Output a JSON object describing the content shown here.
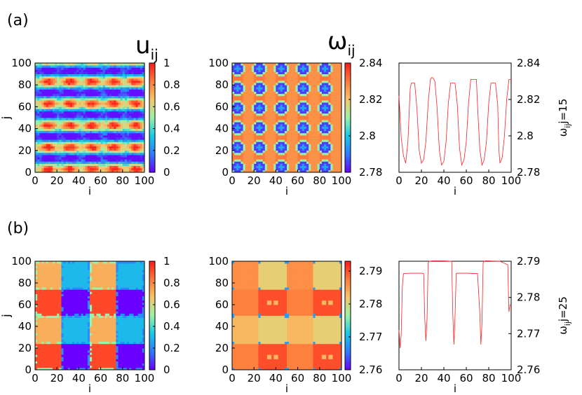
{
  "figure": {
    "panel_labels": [
      "(a)",
      "(b)"
    ],
    "headers": [
      {
        "main": "u",
        "sub": "ij"
      },
      {
        "main": "ω",
        "sub": "ij"
      }
    ],
    "colormap": [
      "#6a00ff",
      "#2f7bff",
      "#18c9e6",
      "#9cf2a8",
      "#f6c66a",
      "#ff7a3a",
      "#ff1a1a"
    ]
  },
  "chart_data": [
    {
      "type": "heatmap",
      "row": "a",
      "quantity": "u_ij",
      "xlabel": "i",
      "ylabel": "j",
      "xlim": [
        0,
        100
      ],
      "ylim": [
        0,
        100
      ],
      "x_ticks": [
        "0",
        "20",
        "40",
        "60",
        "80",
        "100"
      ],
      "y_ticks": [
        "0",
        "20",
        "40",
        "60",
        "80",
        "100"
      ],
      "colorbar": {
        "range": [
          0,
          1
        ],
        "ticks": [
          "0",
          "0.2",
          "0.4",
          "0.6",
          "0.8",
          "1"
        ]
      },
      "pattern": {
        "stripe_period_x": 20,
        "stripe_period_y": 20,
        "description_values": "alternating high/low bands"
      }
    },
    {
      "type": "heatmap",
      "row": "a",
      "quantity": "omega_ij",
      "xlabel": "i",
      "ylabel": "j",
      "xlim": [
        0,
        100
      ],
      "ylim": [
        0,
        100
      ],
      "x_ticks": [
        "0",
        "20",
        "40",
        "60",
        "80",
        "100"
      ],
      "y_ticks": [
        "0",
        "20",
        "40",
        "60",
        "80",
        "100"
      ],
      "colorbar": {
        "range": [
          2.78,
          2.84
        ],
        "ticks": [
          "2.78",
          "2.8",
          "2.82",
          "2.84"
        ]
      },
      "spot_centers_x": [
        5,
        25,
        45,
        65,
        85
      ],
      "spot_centers_y": [
        5,
        23,
        41,
        59,
        77,
        95
      ],
      "spot_value": 2.785,
      "background_value": 2.83
    },
    {
      "type": "line",
      "row": "a",
      "xlabel": "i",
      "ylabel": "ω",
      "ylabel_sub": "ij",
      "ylabel_suffix": "j=15",
      "xlim": [
        0,
        100
      ],
      "ylim": [
        2.78,
        2.84
      ],
      "x_ticks": [
        "0",
        "20",
        "40",
        "60",
        "80",
        "100"
      ],
      "y_ticks": [
        "2.78",
        "2.8",
        "2.82",
        "2.84"
      ],
      "series": [
        {
          "color": "#ff2020",
          "x": [
            0,
            2,
            4,
            6,
            8,
            10,
            11,
            12,
            14,
            16,
            18,
            20,
            22,
            24,
            26,
            28,
            29,
            30,
            32,
            34,
            36,
            38,
            40,
            42,
            44,
            46,
            48,
            49,
            50,
            52,
            54,
            56,
            58,
            60,
            62,
            64,
            66,
            68,
            69,
            70,
            72,
            74,
            76,
            78,
            80,
            82,
            84,
            86,
            88,
            89,
            90,
            92,
            94,
            96,
            98,
            100
          ],
          "y": [
            2.822,
            2.799,
            2.789,
            2.785,
            2.797,
            2.826,
            2.829,
            2.829,
            2.829,
            2.815,
            2.792,
            2.785,
            2.787,
            2.797,
            2.818,
            2.831,
            2.832,
            2.832,
            2.83,
            2.815,
            2.792,
            2.784,
            2.786,
            2.797,
            2.818,
            2.829,
            2.829,
            2.829,
            2.829,
            2.817,
            2.793,
            2.784,
            2.787,
            2.797,
            2.818,
            2.831,
            2.831,
            2.831,
            2.831,
            2.817,
            2.793,
            2.784,
            2.787,
            2.797,
            2.818,
            2.829,
            2.829,
            2.829,
            2.817,
            2.793,
            2.785,
            2.788,
            2.8,
            2.82,
            2.831,
            2.831
          ]
        }
      ]
    },
    {
      "type": "heatmap",
      "row": "b",
      "quantity": "u_ij",
      "xlabel": "i",
      "ylabel": "j",
      "xlim": [
        0,
        100
      ],
      "ylim": [
        0,
        100
      ],
      "x_ticks": [
        "0",
        "20",
        "40",
        "60",
        "80",
        "100"
      ],
      "y_ticks": [
        "0",
        "20",
        "40",
        "60",
        "80",
        "100"
      ],
      "colorbar": {
        "range": [
          0,
          1
        ],
        "ticks": [
          "0",
          "0.2",
          "0.4",
          "0.6",
          "0.8",
          "1"
        ]
      },
      "block_x_edges": [
        0,
        25,
        50,
        75,
        100
      ],
      "block_y_edges": [
        0,
        25,
        50,
        75,
        100
      ],
      "block_values_bottom_to_top": [
        [
          0.92,
          0.0,
          0.92,
          0.0
        ],
        [
          0.72,
          0.3,
          0.72,
          0.3
        ],
        [
          0.92,
          0.0,
          0.92,
          0.0
        ],
        [
          0.72,
          0.3,
          0.72,
          0.3
        ]
      ]
    },
    {
      "type": "heatmap",
      "row": "b",
      "quantity": "omega_ij",
      "xlabel": "i",
      "ylabel": "j",
      "xlim": [
        0,
        100
      ],
      "ylim": [
        0,
        100
      ],
      "x_ticks": [
        "0",
        "20",
        "40",
        "60",
        "80",
        "100"
      ],
      "y_ticks": [
        "0",
        "20",
        "40",
        "60",
        "80",
        "100"
      ],
      "colorbar": {
        "range": [
          2.76,
          2.793
        ],
        "ticks": [
          "2.76",
          "2.77",
          "2.78",
          "2.79"
        ]
      },
      "block_x_edges": [
        0,
        25,
        50,
        75,
        100
      ],
      "block_y_edges": [
        0,
        25,
        50,
        75,
        100
      ],
      "block_values_bottom_to_top": [
        [
          2.787,
          2.79,
          2.787,
          2.79
        ],
        [
          2.783,
          2.781,
          2.783,
          2.781
        ],
        [
          2.787,
          2.79,
          2.787,
          2.79
        ],
        [
          2.786,
          2.781,
          2.786,
          2.781
        ]
      ]
    },
    {
      "type": "line",
      "row": "b",
      "xlabel": "i",
      "ylabel": "ω",
      "ylabel_sub": "ij",
      "ylabel_suffix": "j=25",
      "xlim": [
        0,
        100
      ],
      "ylim": [
        2.76,
        2.79
      ],
      "x_ticks": [
        "0",
        "20",
        "40",
        "60",
        "80",
        "100"
      ],
      "y_ticks": [
        "2.76",
        "2.77",
        "2.78",
        "2.79"
      ],
      "series": [
        {
          "color": "#ff2020",
          "x": [
            0,
            1,
            2,
            3,
            4,
            10,
            20,
            22,
            23,
            24,
            25,
            26,
            27,
            30,
            40,
            47,
            48,
            49,
            50,
            51,
            52,
            53,
            60,
            70,
            72,
            73,
            74,
            75,
            76,
            77,
            80,
            90,
            97,
            98,
            99,
            100
          ],
          "y": [
            2.771,
            2.766,
            2.77,
            2.783,
            2.7866,
            2.7867,
            2.7867,
            2.7866,
            2.774,
            2.768,
            2.774,
            2.7895,
            2.79,
            2.7901,
            2.7901,
            2.79,
            2.775,
            2.767,
            2.775,
            2.7866,
            2.7867,
            2.7867,
            2.7867,
            2.7866,
            2.776,
            2.767,
            2.773,
            2.7895,
            2.79,
            2.7901,
            2.7901,
            2.79,
            2.789,
            2.776,
            2.778,
            2.778
          ]
        }
      ]
    }
  ]
}
